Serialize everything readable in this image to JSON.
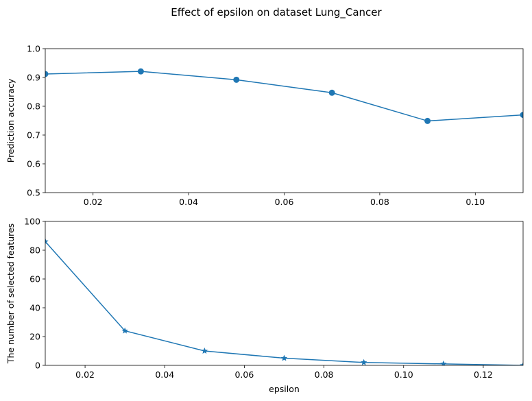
{
  "title": "Effect of epsilon on dataset Lung_Cancer",
  "series_color": "#1f77b4",
  "chart_data": [
    {
      "type": "line",
      "marker": "circle",
      "x": [
        0.01,
        0.03,
        0.05,
        0.07,
        0.09,
        0.11
      ],
      "values": [
        0.912,
        0.921,
        0.892,
        0.847,
        0.749,
        0.77
      ],
      "xlabel": "",
      "ylabel": "Prediction accuracy",
      "xlim": [
        0.01,
        0.11
      ],
      "ylim": [
        0.5,
        1.0
      ],
      "xticks": [
        0.02,
        0.04,
        0.06,
        0.08,
        0.1
      ],
      "xtick_labels": [
        "0.02",
        "0.04",
        "0.06",
        "0.08",
        "0.10"
      ],
      "yticks": [
        0.5,
        0.6,
        0.7,
        0.8,
        0.9,
        1.0
      ],
      "ytick_labels": [
        "0.5",
        "0.6",
        "0.7",
        "0.8",
        "0.9",
        "1.0"
      ],
      "grid": false,
      "legend": false
    },
    {
      "type": "line",
      "marker": "star",
      "x": [
        0.01,
        0.03,
        0.05,
        0.07,
        0.09,
        0.11,
        0.13
      ],
      "values": [
        86,
        24,
        10,
        5,
        2,
        1,
        0
      ],
      "xlabel": "epsilon",
      "ylabel": "The number of selected features",
      "xlim": [
        0.01,
        0.13
      ],
      "ylim": [
        0,
        100
      ],
      "xticks": [
        0.02,
        0.04,
        0.06,
        0.08,
        0.1,
        0.12
      ],
      "xtick_labels": [
        "0.02",
        "0.04",
        "0.06",
        "0.08",
        "0.10",
        "0.12"
      ],
      "yticks": [
        0,
        20,
        40,
        60,
        80,
        100
      ],
      "ytick_labels": [
        "0",
        "20",
        "40",
        "60",
        "80",
        "100"
      ],
      "grid": false,
      "legend": false
    }
  ]
}
